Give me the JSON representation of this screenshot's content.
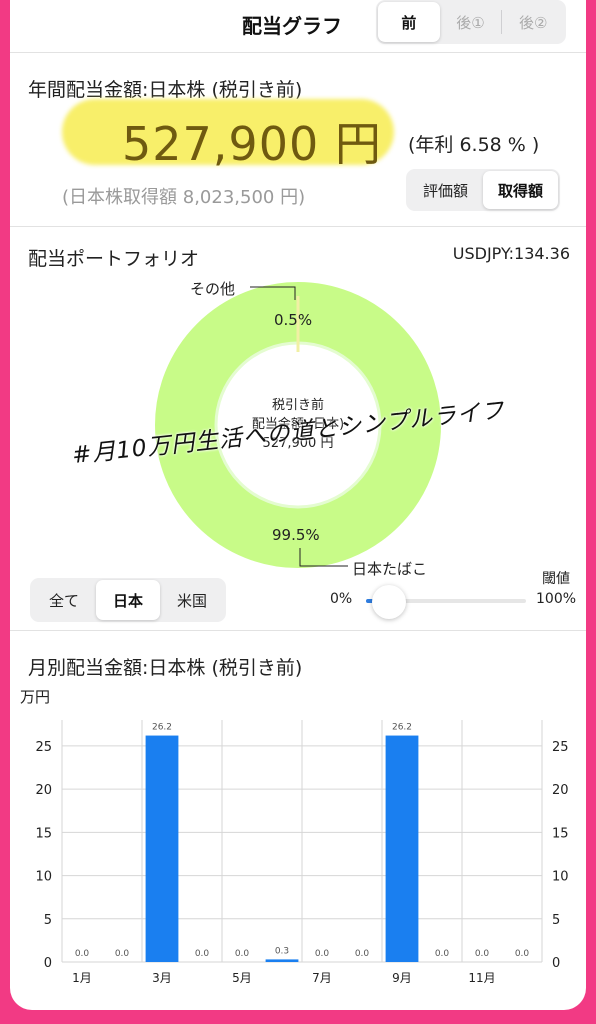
{
  "header": {
    "title": "配当グラフ",
    "nav_tabs": [
      {
        "label": "前",
        "selected": true
      },
      {
        "label": "後①",
        "selected": false
      },
      {
        "label": "後②",
        "selected": false
      }
    ]
  },
  "annual": {
    "title": "年間配当金額:日本株 (税引き前)",
    "amount": "527,900 円",
    "yield": "(年利 6.58 % )",
    "cost": "(日本株取得額 8,023,500 円)",
    "toggle": [
      {
        "label": "評価額",
        "selected": false
      },
      {
        "label": "取得額",
        "selected": true
      }
    ]
  },
  "portfolio": {
    "title": "配当ポートフォリオ",
    "fx": "USDJPY:134.36",
    "center_lines": [
      "税引き前",
      "配当金額 (日本)",
      "527,900 円"
    ],
    "slices": [
      {
        "name": "日本たばこ",
        "percent_label": "99.5%",
        "value": 99.5,
        "color": "#c8fb88"
      },
      {
        "name": "その他",
        "percent_label": "0.5%",
        "value": 0.5,
        "color": "#f1f0a4"
      }
    ],
    "filter": [
      {
        "label": "全て",
        "selected": false
      },
      {
        "label": "日本",
        "selected": true
      },
      {
        "label": "米国",
        "selected": false
      }
    ],
    "threshold": {
      "label": "閾値",
      "min_label": "0%",
      "max_label": "100%",
      "value": 0.04
    }
  },
  "watermark": "#月10万円生活への道とシンプルライフ",
  "monthly": {
    "title": "月別配当金額:日本株 (税引き前)",
    "unit": "万円"
  },
  "chart_data": {
    "type": "bar",
    "categories": [
      "1月",
      "2月",
      "3月",
      "4月",
      "5月",
      "6月",
      "7月",
      "8月",
      "9月",
      "10月",
      "11月",
      "12月"
    ],
    "x_tick_labels": [
      "1月",
      "",
      "3月",
      "",
      "5月",
      "",
      "7月",
      "",
      "9月",
      "",
      "11月",
      ""
    ],
    "values": [
      0.0,
      0.0,
      26.2,
      0.0,
      0.0,
      0.3,
      0.0,
      0.0,
      26.2,
      0.0,
      0.0,
      0.0
    ],
    "data_labels": [
      "0.0",
      "0.0",
      "26.2",
      "0.0",
      "0.0",
      "0.3",
      "0.0",
      "0.0",
      "26.2",
      "0.0",
      "0.0",
      "0.0"
    ],
    "ylabel": "万円",
    "ylim": [
      0,
      28
    ],
    "yticks": [
      0,
      5,
      10,
      15,
      20,
      25
    ],
    "grid": true,
    "bar_color": "#1a7ff0"
  }
}
